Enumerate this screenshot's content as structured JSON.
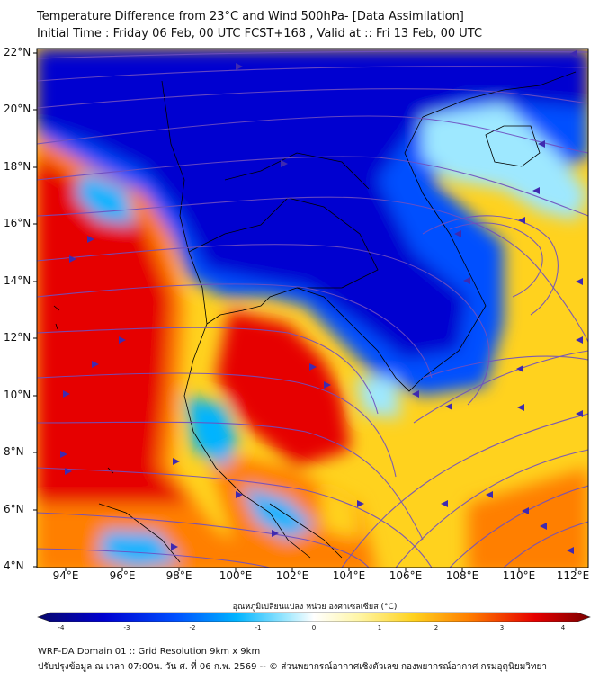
{
  "title_line1": "Temperature Difference from 23°C and Wind 500hPa- [Data Assimilation]",
  "title_line2": "Initial Time : Friday 06 Feb, 00 UTC FCST+168 , Valid at ::  Fri 13 Feb, 00 UTC",
  "lat_labels": [
    "22°N",
    "20°N",
    "18°N",
    "16°N",
    "14°N",
    "12°N",
    "10°N",
    "8°N",
    "6°N",
    "4°N"
  ],
  "lon_labels": [
    "94°E",
    "96°E",
    "98°E",
    "100°E",
    "102°E",
    "104°E",
    "106°E",
    "108°E",
    "110°E",
    "112°E"
  ],
  "colorbar": {
    "title": "อุณหภูมิเปลี่ยนแปลง หน่วย องศาเซลเซียส (°C)",
    "ticks": [
      "-4",
      "-3",
      "-2",
      "-1",
      "0",
      "1",
      "2",
      "3",
      "4"
    ],
    "range": [
      -4,
      4
    ],
    "colors": [
      "#08086b",
      "#0000d0",
      "#0050ff",
      "#00b4ff",
      "#9ee8ff",
      "#ffffff",
      "#fff6a8",
      "#ffd21e",
      "#ff7f00",
      "#e60000",
      "#7a0000"
    ]
  },
  "footer_line1": "WRF-DA Domain 01 :: Grid Resolution 9km x 9km",
  "footer_line2": "ปรับปรุงข้อมูล ณ เวลา 07:00น. วัน ศ. ที่ 06 ก.พ. 2569 -- © ส่วนพยากรณ์อากาศเชิงตัวเลข กองพยากรณ์อากาศ กรมอุตุนิยมวิทยา",
  "colors": {
    "streamline": "#6f4fc0",
    "arrow": "#3f2ab0",
    "coastline": "#000000"
  }
}
